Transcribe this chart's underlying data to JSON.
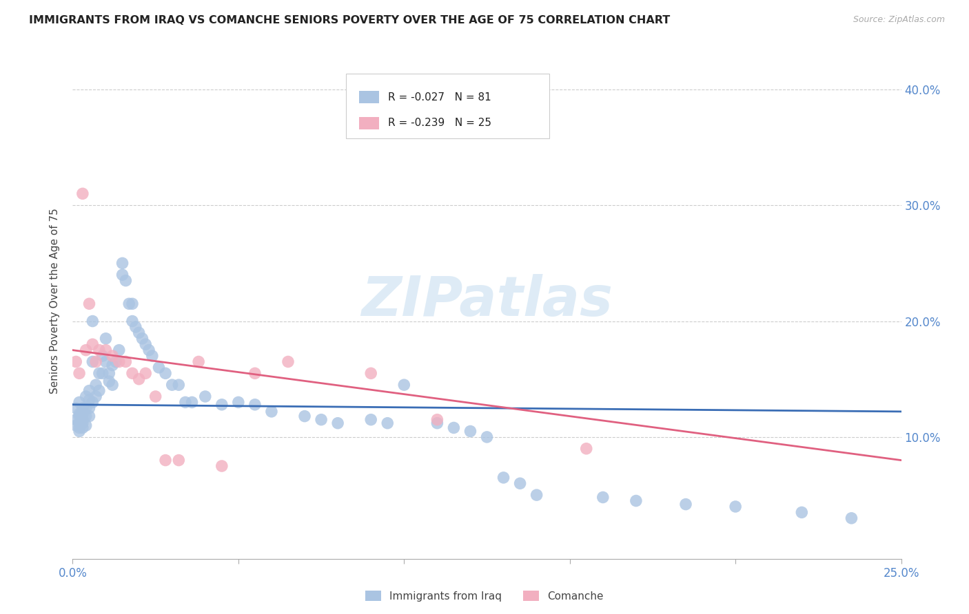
{
  "title": "IMMIGRANTS FROM IRAQ VS COMANCHE SENIORS POVERTY OVER THE AGE OF 75 CORRELATION CHART",
  "source": "Source: ZipAtlas.com",
  "ylabel": "Seniors Poverty Over the Age of 75",
  "xlim": [
    0.0,
    0.25
  ],
  "ylim": [
    -0.005,
    0.44
  ],
  "xticks": [
    0.0,
    0.05,
    0.1,
    0.15,
    0.2,
    0.25
  ],
  "xticklabels": [
    "0.0%",
    "",
    "",
    "",
    "",
    "25.0%"
  ],
  "yticks": [
    0.1,
    0.2,
    0.3,
    0.4
  ],
  "right_yticklabels": [
    "10.0%",
    "20.0%",
    "30.0%",
    "40.0%"
  ],
  "legend_label_blue": "R = -0.027   N = 81",
  "legend_label_pink": "R = -0.239   N = 25",
  "bottom_legend": [
    "Immigrants from Iraq",
    "Comanche"
  ],
  "blue_color": "#aac4e2",
  "pink_color": "#f2afc0",
  "trend_blue_color": "#3a6db5",
  "trend_pink_color": "#e06080",
  "watermark_text": "ZIPatlas",
  "watermark_color": "#c8dff0",
  "blue_scatter_x": [
    0.001,
    0.001,
    0.001,
    0.002,
    0.002,
    0.002,
    0.002,
    0.002,
    0.002,
    0.003,
    0.003,
    0.003,
    0.003,
    0.003,
    0.004,
    0.004,
    0.004,
    0.004,
    0.005,
    0.005,
    0.005,
    0.005,
    0.006,
    0.006,
    0.006,
    0.007,
    0.007,
    0.008,
    0.008,
    0.009,
    0.009,
    0.01,
    0.01,
    0.011,
    0.011,
    0.012,
    0.012,
    0.013,
    0.014,
    0.015,
    0.015,
    0.016,
    0.017,
    0.018,
    0.018,
    0.019,
    0.02,
    0.021,
    0.022,
    0.023,
    0.024,
    0.026,
    0.028,
    0.03,
    0.032,
    0.034,
    0.036,
    0.04,
    0.045,
    0.05,
    0.055,
    0.06,
    0.07,
    0.075,
    0.08,
    0.09,
    0.095,
    0.1,
    0.11,
    0.115,
    0.12,
    0.125,
    0.13,
    0.135,
    0.14,
    0.16,
    0.17,
    0.185,
    0.2,
    0.22,
    0.235
  ],
  "blue_scatter_y": [
    0.125,
    0.115,
    0.11,
    0.13,
    0.12,
    0.118,
    0.112,
    0.108,
    0.105,
    0.125,
    0.12,
    0.115,
    0.112,
    0.108,
    0.135,
    0.125,
    0.118,
    0.11,
    0.14,
    0.132,
    0.125,
    0.118,
    0.2,
    0.165,
    0.13,
    0.145,
    0.135,
    0.155,
    0.14,
    0.17,
    0.155,
    0.185,
    0.165,
    0.155,
    0.148,
    0.162,
    0.145,
    0.165,
    0.175,
    0.25,
    0.24,
    0.235,
    0.215,
    0.215,
    0.2,
    0.195,
    0.19,
    0.185,
    0.18,
    0.175,
    0.17,
    0.16,
    0.155,
    0.145,
    0.145,
    0.13,
    0.13,
    0.135,
    0.128,
    0.13,
    0.128,
    0.122,
    0.118,
    0.115,
    0.112,
    0.115,
    0.112,
    0.145,
    0.112,
    0.108,
    0.105,
    0.1,
    0.065,
    0.06,
    0.05,
    0.048,
    0.045,
    0.042,
    0.04,
    0.035,
    0.03
  ],
  "pink_scatter_x": [
    0.001,
    0.002,
    0.003,
    0.004,
    0.005,
    0.006,
    0.007,
    0.008,
    0.01,
    0.012,
    0.014,
    0.016,
    0.018,
    0.02,
    0.022,
    0.025,
    0.028,
    0.032,
    0.038,
    0.045,
    0.055,
    0.065,
    0.09,
    0.11,
    0.155
  ],
  "pink_scatter_y": [
    0.165,
    0.155,
    0.31,
    0.175,
    0.215,
    0.18,
    0.165,
    0.175,
    0.175,
    0.17,
    0.165,
    0.165,
    0.155,
    0.15,
    0.155,
    0.135,
    0.08,
    0.08,
    0.165,
    0.075,
    0.155,
    0.165,
    0.155,
    0.115,
    0.09
  ],
  "blue_trend": [
    0.0,
    0.128,
    0.25,
    0.122
  ],
  "pink_trend": [
    0.0,
    0.175,
    0.25,
    0.08
  ]
}
